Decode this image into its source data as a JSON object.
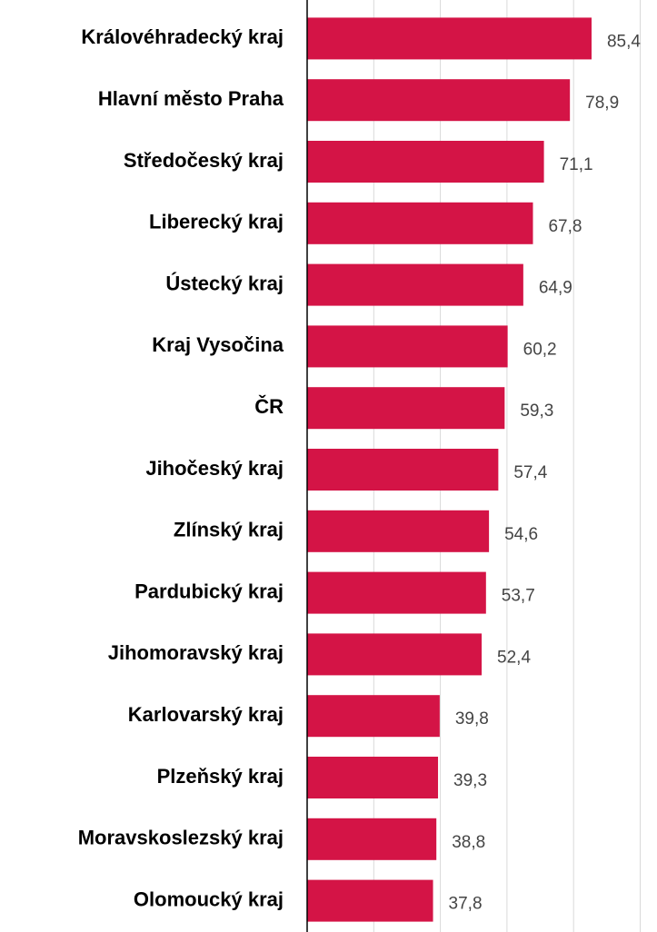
{
  "chart_data": {
    "type": "bar",
    "orientation": "horizontal",
    "categories": [
      "Královéhradecký kraj",
      "Hlavní město Praha",
      "Středočeský kraj",
      "Liberecký kraj",
      "Ústecký kraj",
      "Kraj Vysočina",
      "ČR",
      "Jihočeský kraj",
      "Zlínský kraj",
      "Pardubický kraj",
      "Jihomoravský kraj",
      "Karlovarský kraj",
      "Plzeňský kraj",
      "Moravskoslezský kraj",
      "Olomoucký kraj"
    ],
    "values": [
      85.4,
      78.9,
      71.1,
      67.8,
      64.9,
      60.2,
      59.3,
      57.4,
      54.6,
      53.7,
      52.4,
      39.8,
      39.3,
      38.8,
      37.8
    ],
    "value_labels": [
      "85,4",
      "78,9",
      "71,1",
      "67,8",
      "64,9",
      "60,2",
      "59,3",
      "57,4",
      "54,6",
      "53,7",
      "52,4",
      "39,8",
      "39,3",
      "38,8",
      "37,8"
    ],
    "color": "#d41446",
    "xlim": [
      0,
      100
    ],
    "xticks": [
      0,
      20,
      40,
      60,
      80,
      100
    ],
    "grid": true
  }
}
